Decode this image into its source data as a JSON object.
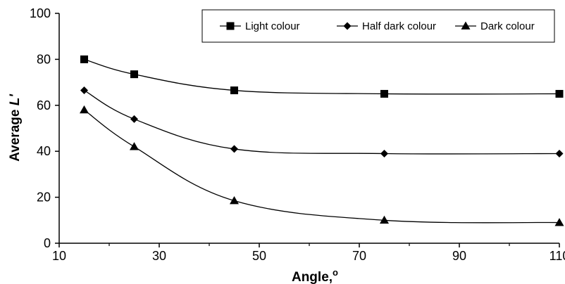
{
  "chart_data": {
    "type": "line",
    "xlabel": "Angle,",
    "xlabel_sup": "o",
    "ylabel": "Average ",
    "ylabel_var": "L'",
    "xlim": [
      10,
      110
    ],
    "ylim": [
      0,
      100
    ],
    "xticks": [
      "10",
      "30",
      "50",
      "70",
      "90",
      "110"
    ],
    "yticks": [
      "0",
      "20",
      "40",
      "60",
      "80",
      "100"
    ],
    "x": [
      15,
      25,
      45,
      75,
      110
    ],
    "series": [
      {
        "name": "Light colour",
        "marker": "square",
        "values": [
          80,
          73.5,
          66.5,
          65,
          65
        ]
      },
      {
        "name": "Half dark colour",
        "marker": "diamond",
        "values": [
          66.5,
          54,
          41,
          39,
          39
        ]
      },
      {
        "name": "Dark colour",
        "marker": "triangle",
        "values": [
          58,
          42,
          18.5,
          10,
          9
        ]
      }
    ],
    "grid": false,
    "legend_position": "top-right",
    "line_color": "#000000"
  }
}
